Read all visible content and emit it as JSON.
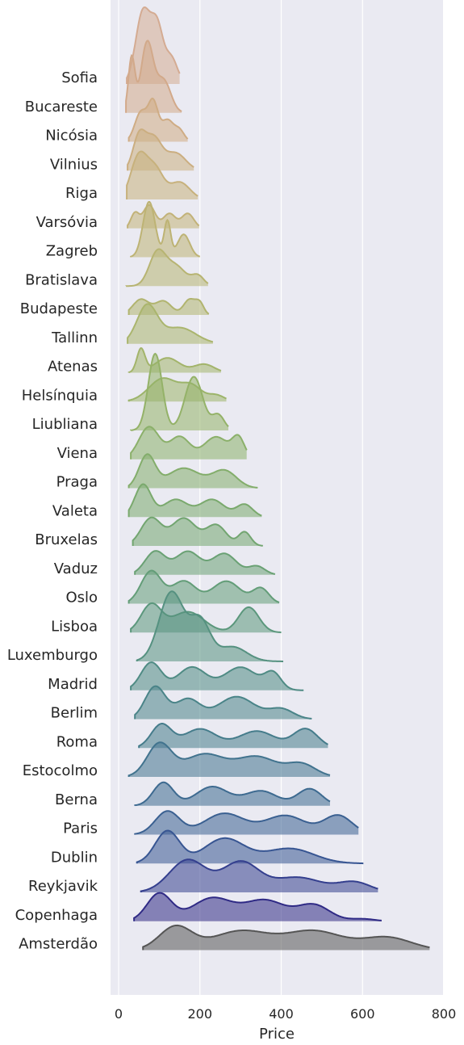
{
  "chart_data": {
    "type": "area",
    "xlabel": "Price",
    "xlim": [
      -20,
      800
    ],
    "xticks": [
      0,
      200,
      400,
      600,
      800
    ],
    "grid": true,
    "categories": [
      "Sofia",
      "Bucareste",
      "Nicósia",
      "Vilnius",
      "Riga",
      "Varsóvia",
      "Zagreb",
      "Bratislava",
      "Budapeste",
      "Tallinn",
      "Atenas",
      "Helsínquia",
      "Liubliana",
      "Viena",
      "Praga",
      "Valeta",
      "Bruxelas",
      "Vaduz",
      "Oslo",
      "Lisboa",
      "Luxemburgo",
      "Madrid",
      "Berlim",
      "Roma",
      "Estocolmo",
      "Berna",
      "Paris",
      "Dublin",
      "Reykjavik",
      "Copenhaga",
      "Amsterdão"
    ],
    "series": [
      {
        "name": "Sofia",
        "color": "#d4ab92",
        "min": 20,
        "max": 150,
        "peaks": [
          [
            60,
            1.0,
            18
          ],
          [
            95,
            0.75,
            15
          ],
          [
            130,
            0.35,
            15
          ]
        ]
      },
      {
        "name": "Bucareste",
        "color": "#d2a98a",
        "min": 18,
        "max": 155,
        "peaks": [
          [
            32,
            0.75,
            8
          ],
          [
            70,
            0.95,
            15
          ],
          [
            110,
            0.45,
            18
          ]
        ]
      },
      {
        "name": "Nicósia",
        "color": "#cfac84",
        "min": 25,
        "max": 170,
        "peaks": [
          [
            55,
            0.55,
            15
          ],
          [
            85,
            0.7,
            12
          ],
          [
            120,
            0.4,
            15
          ],
          [
            150,
            0.2,
            12
          ]
        ]
      },
      {
        "name": "Vilnius",
        "color": "#cbae80",
        "min": 22,
        "max": 185,
        "peaks": [
          [
            50,
            0.65,
            15
          ],
          [
            85,
            0.65,
            20
          ],
          [
            140,
            0.35,
            25
          ]
        ]
      },
      {
        "name": "Riga",
        "color": "#c7b17c",
        "min": 20,
        "max": 195,
        "peaks": [
          [
            50,
            0.75,
            20
          ],
          [
            90,
            0.5,
            20
          ],
          [
            150,
            0.3,
            25
          ]
        ]
      },
      {
        "name": "Varsóvia",
        "color": "#c2b278",
        "min": 22,
        "max": 198,
        "peaks": [
          [
            40,
            0.35,
            10
          ],
          [
            75,
            0.55,
            15
          ],
          [
            125,
            0.35,
            15
          ],
          [
            170,
            0.35,
            15
          ]
        ]
      },
      {
        "name": "Zagreb",
        "color": "#bdb374",
        "min": 30,
        "max": 200,
        "peaks": [
          [
            75,
            0.85,
            15
          ],
          [
            120,
            0.55,
            8
          ],
          [
            160,
            0.35,
            15
          ]
        ]
      },
      {
        "name": "Bratislava",
        "color": "#b7b472",
        "min": 18,
        "max": 220,
        "peaks": [
          [
            95,
            0.65,
            20
          ],
          [
            140,
            0.4,
            25
          ],
          [
            195,
            0.2,
            15
          ]
        ]
      },
      {
        "name": "Budapeste",
        "color": "#b1b46f",
        "min": 25,
        "max": 222,
        "peaks": [
          [
            55,
            0.45,
            20
          ],
          [
            110,
            0.4,
            20
          ],
          [
            175,
            0.45,
            15
          ],
          [
            200,
            0.3,
            10
          ]
        ]
      },
      {
        "name": "Tallinn",
        "color": "#aab56d",
        "min": 22,
        "max": 232,
        "peaks": [
          [
            70,
            0.7,
            25
          ],
          [
            150,
            0.3,
            40
          ]
        ]
      },
      {
        "name": "Atenas",
        "color": "#a3b46b",
        "min": 25,
        "max": 252,
        "peaks": [
          [
            55,
            0.55,
            10
          ],
          [
            120,
            0.35,
            30
          ],
          [
            210,
            0.2,
            25
          ]
        ]
      },
      {
        "name": "Helsínquia",
        "color": "#9cb46a",
        "min": 25,
        "max": 265,
        "peaks": [
          [
            110,
            0.55,
            35
          ],
          [
            180,
            0.35,
            25
          ],
          [
            240,
            0.15,
            20
          ]
        ]
      },
      {
        "name": "Liubliana",
        "color": "#94b268",
        "min": 30,
        "max": 270,
        "peaks": [
          [
            90,
            1.0,
            17
          ],
          [
            185,
            0.7,
            22
          ],
          [
            245,
            0.2,
            15
          ]
        ]
      },
      {
        "name": "Viena",
        "color": "#8bb06a",
        "min": 30,
        "max": 315,
        "peaks": [
          [
            75,
            0.65,
            25
          ],
          [
            150,
            0.45,
            25
          ],
          [
            240,
            0.45,
            30
          ],
          [
            295,
            0.4,
            15
          ]
        ]
      },
      {
        "name": "Praga",
        "color": "#83ad6b",
        "min": 25,
        "max": 342,
        "peaks": [
          [
            70,
            0.65,
            20
          ],
          [
            160,
            0.4,
            40
          ],
          [
            260,
            0.35,
            30
          ]
        ]
      },
      {
        "name": "Valeta",
        "color": "#7aa96d",
        "min": 25,
        "max": 352,
        "peaks": [
          [
            60,
            0.65,
            20
          ],
          [
            140,
            0.35,
            30
          ],
          [
            230,
            0.35,
            30
          ],
          [
            310,
            0.25,
            20
          ]
        ]
      },
      {
        "name": "Bruxelas",
        "color": "#72a570",
        "min": 35,
        "max": 355,
        "peaks": [
          [
            80,
            0.6,
            25
          ],
          [
            160,
            0.6,
            30
          ],
          [
            240,
            0.45,
            25
          ],
          [
            310,
            0.3,
            15
          ]
        ]
      },
      {
        "name": "Vaduz",
        "color": "#6aa174",
        "min": 40,
        "max": 385,
        "peaks": [
          [
            90,
            0.55,
            25
          ],
          [
            170,
            0.55,
            30
          ],
          [
            260,
            0.5,
            30
          ],
          [
            340,
            0.2,
            20
          ]
        ]
      },
      {
        "name": "Oslo",
        "color": "#639d78",
        "min": 25,
        "max": 395,
        "peaks": [
          [
            80,
            0.65,
            25
          ],
          [
            160,
            0.45,
            30
          ],
          [
            265,
            0.45,
            35
          ],
          [
            350,
            0.3,
            20
          ]
        ]
      },
      {
        "name": "Lisboa",
        "color": "#5b977c",
        "min": 30,
        "max": 400,
        "peaks": [
          [
            80,
            0.6,
            25
          ],
          [
            170,
            0.45,
            40
          ],
          [
            320,
            0.55,
            25
          ]
        ]
      },
      {
        "name": "Luxemburgo",
        "color": "#559180",
        "min": 45,
        "max": 405,
        "peaks": [
          [
            130,
            0.95,
            30
          ],
          [
            200,
            0.55,
            25
          ],
          [
            280,
            0.2,
            35
          ]
        ]
      },
      {
        "name": "Madrid",
        "color": "#4f8b84",
        "min": 30,
        "max": 455,
        "peaks": [
          [
            80,
            0.6,
            25
          ],
          [
            180,
            0.5,
            35
          ],
          [
            300,
            0.5,
            40
          ],
          [
            380,
            0.35,
            20
          ]
        ]
      },
      {
        "name": "Berlim",
        "color": "#4a8488",
        "min": 40,
        "max": 475,
        "peaks": [
          [
            90,
            0.65,
            25
          ],
          [
            170,
            0.4,
            30
          ],
          [
            290,
            0.45,
            45
          ],
          [
            400,
            0.2,
            30
          ]
        ]
      },
      {
        "name": "Roma",
        "color": "#457c8b",
        "min": 50,
        "max": 515,
        "peaks": [
          [
            105,
            0.55,
            25
          ],
          [
            200,
            0.45,
            40
          ],
          [
            340,
            0.4,
            45
          ],
          [
            460,
            0.45,
            30
          ]
        ]
      },
      {
        "name": "Estocolmo",
        "color": "#41738e",
        "min": 25,
        "max": 520,
        "peaks": [
          [
            100,
            0.65,
            30
          ],
          [
            210,
            0.45,
            50
          ],
          [
            340,
            0.4,
            50
          ],
          [
            450,
            0.25,
            35
          ]
        ]
      },
      {
        "name": "Berna",
        "color": "#3d6a90",
        "min": 40,
        "max": 520,
        "peaks": [
          [
            110,
            0.55,
            25
          ],
          [
            230,
            0.45,
            40
          ],
          [
            350,
            0.35,
            40
          ],
          [
            470,
            0.4,
            30
          ]
        ]
      },
      {
        "name": "Paris",
        "color": "#3a6091",
        "min": 40,
        "max": 590,
        "peaks": [
          [
            120,
            0.55,
            30
          ],
          [
            260,
            0.5,
            50
          ],
          [
            410,
            0.45,
            50
          ],
          [
            540,
            0.45,
            35
          ]
        ]
      },
      {
        "name": "Dublin",
        "color": "#375592",
        "min": 45,
        "max": 602,
        "peaks": [
          [
            120,
            0.65,
            30
          ],
          [
            260,
            0.5,
            50
          ],
          [
            420,
            0.3,
            60
          ]
        ]
      },
      {
        "name": "Reykjavik",
        "color": "#343f8e",
        "min": 55,
        "max": 638,
        "peaks": [
          [
            170,
            0.65,
            45
          ],
          [
            300,
            0.6,
            45
          ],
          [
            440,
            0.3,
            60
          ],
          [
            580,
            0.2,
            40
          ]
        ]
      },
      {
        "name": "Copenhaga",
        "color": "#2f2a85",
        "min": 38,
        "max": 647,
        "peaks": [
          [
            100,
            0.6,
            30
          ],
          [
            230,
            0.5,
            50
          ],
          [
            360,
            0.45,
            50
          ],
          [
            480,
            0.35,
            40
          ],
          [
            600,
            0.05,
            30
          ]
        ]
      },
      {
        "name": "Amsterdão",
        "color": "#555555",
        "min": 60,
        "max": 765,
        "peaks": [
          [
            140,
            0.55,
            40
          ],
          [
            300,
            0.45,
            70
          ],
          [
            480,
            0.45,
            70
          ],
          [
            660,
            0.3,
            60
          ]
        ]
      }
    ]
  }
}
